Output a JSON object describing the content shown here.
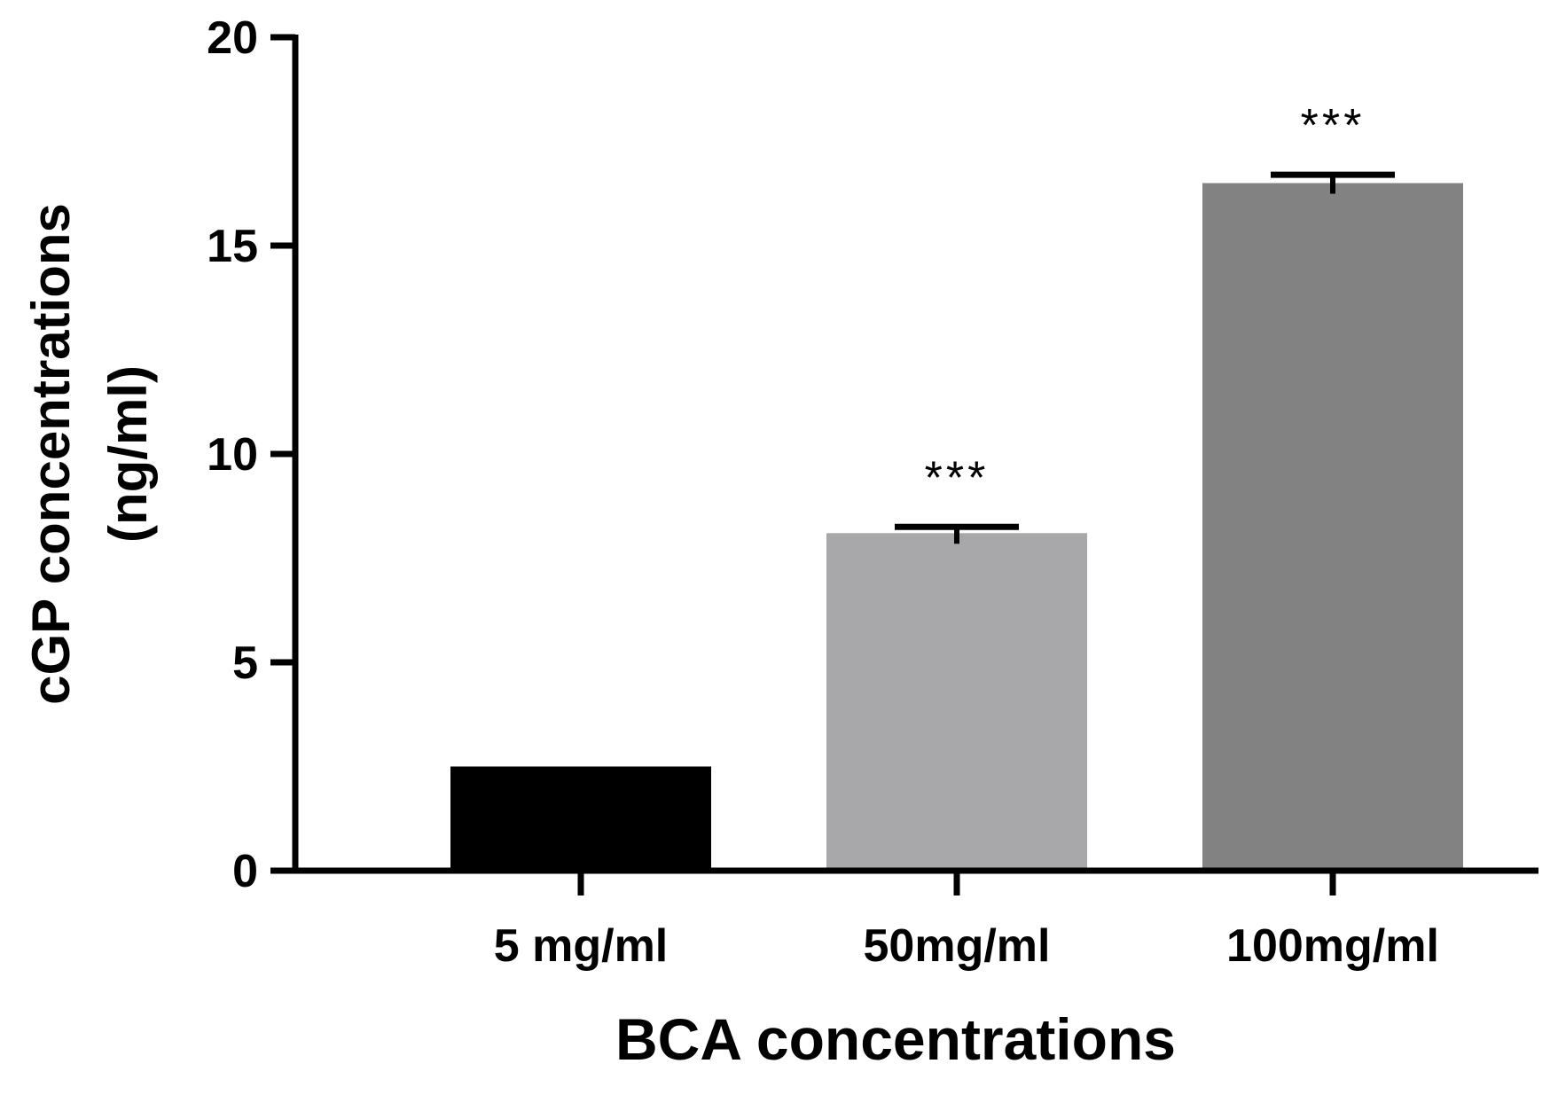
{
  "chart_data": {
    "type": "bar",
    "title": "",
    "xlabel": "BCA concentrations",
    "ylabel_line1": "cGP concentrations",
    "ylabel_line2": "(ng/ml)",
    "ylim": [
      0,
      20
    ],
    "yticks": [
      0,
      5,
      10,
      15,
      20
    ],
    "categories": [
      "5 mg/ml",
      "50mg/ml",
      "100mg/ml"
    ],
    "values": [
      2.5,
      8.1,
      16.5
    ],
    "errors": [
      0,
      0.15,
      0.2
    ],
    "annotations": [
      "",
      "***",
      "***"
    ],
    "colors": [
      "#000000",
      "#a8a8aa",
      "#828282"
    ],
    "grid": false,
    "legend": "none"
  }
}
